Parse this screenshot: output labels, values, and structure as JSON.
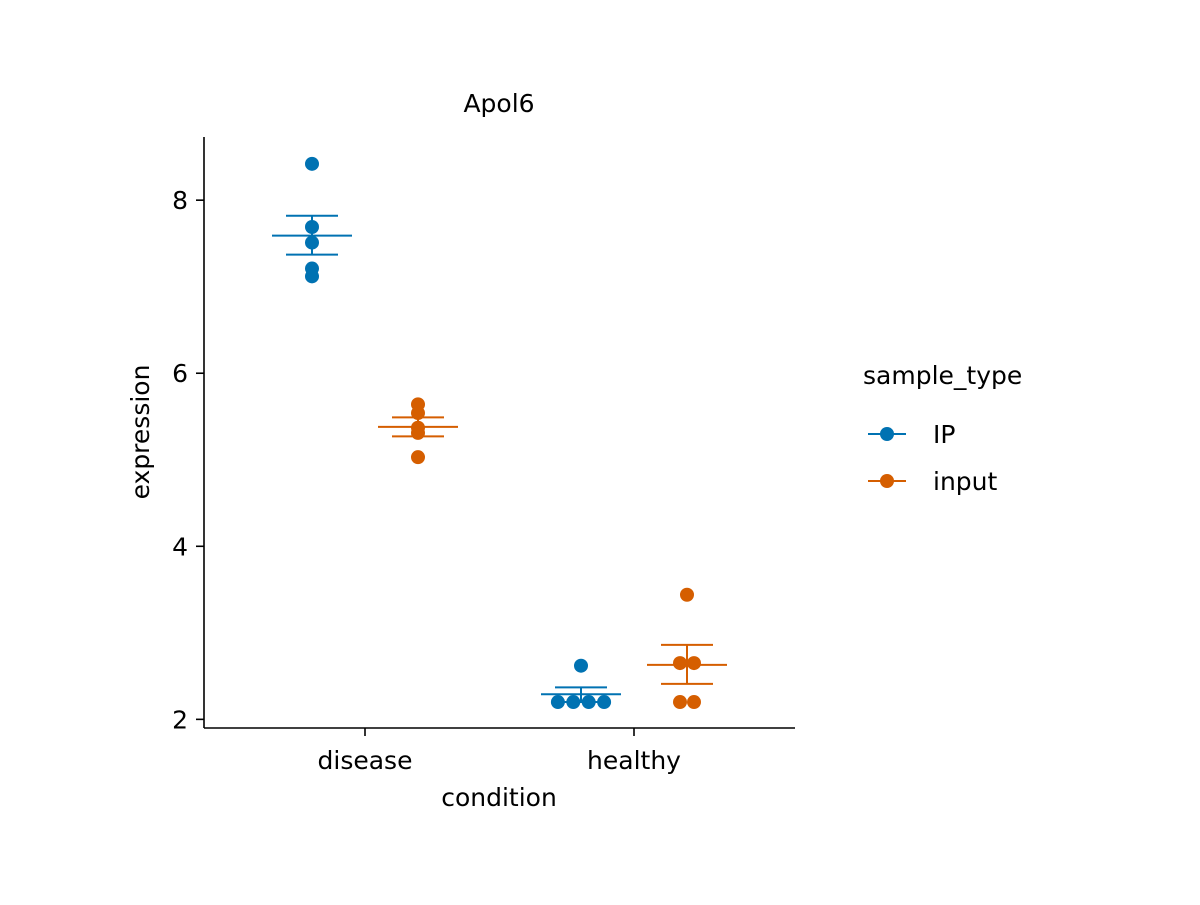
{
  "chart_data": {
    "type": "scatter",
    "title": "Apol6",
    "xlabel": "condition",
    "ylabel": "expression",
    "categories": [
      "disease",
      "healthy"
    ],
    "yticks": [
      2,
      4,
      6,
      8
    ],
    "ylim": [
      1.9,
      8.73
    ],
    "grid": false,
    "legend": {
      "title": "sample_type",
      "placement": "right"
    },
    "series": [
      {
        "name": "IP",
        "color": "#0072B2",
        "points": [
          {
            "x": "disease",
            "y": 8.42
          },
          {
            "x": "disease",
            "y": 7.69
          },
          {
            "x": "disease",
            "y": 7.51
          },
          {
            "x": "disease",
            "y": 7.21
          },
          {
            "x": "disease",
            "y": 7.12
          },
          {
            "x": "healthy",
            "y": 2.62
          },
          {
            "x": "healthy",
            "y": 2.2
          },
          {
            "x": "healthy",
            "y": 2.2
          },
          {
            "x": "healthy",
            "y": 2.2
          },
          {
            "x": "healthy",
            "y": 2.2
          }
        ],
        "summary": [
          {
            "x": "disease",
            "mean": 7.59,
            "low": 7.37,
            "high": 7.82
          },
          {
            "x": "healthy",
            "mean": 2.29,
            "low": 2.2,
            "high": 2.37
          }
        ]
      },
      {
        "name": "input",
        "color": "#D55E00",
        "points": [
          {
            "x": "disease",
            "y": 5.64
          },
          {
            "x": "disease",
            "y": 5.54
          },
          {
            "x": "disease",
            "y": 5.37
          },
          {
            "x": "disease",
            "y": 5.31
          },
          {
            "x": "disease",
            "y": 5.03
          },
          {
            "x": "healthy",
            "y": 3.44
          },
          {
            "x": "healthy",
            "y": 2.65
          },
          {
            "x": "healthy",
            "y": 2.65
          },
          {
            "x": "healthy",
            "y": 2.2
          },
          {
            "x": "healthy",
            "y": 2.2
          }
        ],
        "summary": [
          {
            "x": "disease",
            "mean": 5.38,
            "low": 5.27,
            "high": 5.49
          },
          {
            "x": "healthy",
            "mean": 2.63,
            "low": 2.41,
            "high": 2.86
          }
        ]
      }
    ]
  }
}
